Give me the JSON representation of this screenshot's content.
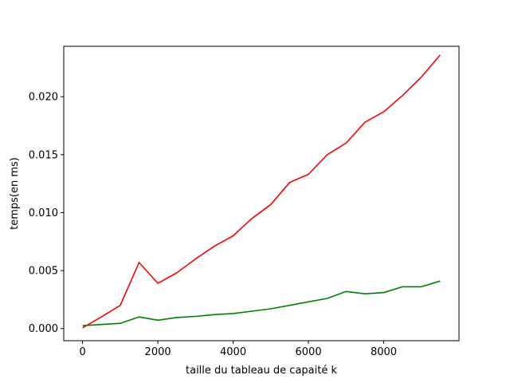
{
  "chart_data": {
    "type": "line",
    "title": "",
    "xlabel": "taille du tableau de capaité k",
    "ylabel": "temps(en ms)",
    "xlim": [
      -500,
      10000
    ],
    "ylim": [
      -0.00105,
      0.02435
    ],
    "xticks": [
      0,
      2000,
      4000,
      6000,
      8000
    ],
    "xtick_labels": [
      "0",
      "2000",
      "4000",
      "6000",
      "8000"
    ],
    "yticks": [
      0.0,
      0.005,
      0.01,
      0.015,
      0.02
    ],
    "ytick_labels": [
      "0.000",
      "0.005",
      "0.010",
      "0.015",
      "0.020"
    ],
    "grid": false,
    "x": [
      0,
      500,
      1000,
      1500,
      2000,
      2500,
      3000,
      3500,
      4000,
      4500,
      5000,
      5500,
      6000,
      6500,
      7000,
      7500,
      8000,
      8500,
      9000,
      9500
    ],
    "series": [
      {
        "color": "#ff0000",
        "values": [
          6e-05,
          0.001,
          0.002,
          0.0057,
          0.0039,
          0.0048,
          0.006,
          0.0071,
          0.008,
          0.0095,
          0.0107,
          0.0126,
          0.0133,
          0.015,
          0.016,
          0.0178,
          0.0187,
          0.0201,
          0.0217,
          0.0236
        ]
      },
      {
        "color": "#008000",
        "values": [
          0.00025,
          0.00035,
          0.00045,
          0.001,
          0.00072,
          0.00095,
          0.00105,
          0.0012,
          0.0013,
          0.0015,
          0.0017,
          0.002,
          0.0023,
          0.0026,
          0.0032,
          0.003,
          0.0031,
          0.0036,
          0.0036,
          0.0041
        ]
      }
    ]
  }
}
